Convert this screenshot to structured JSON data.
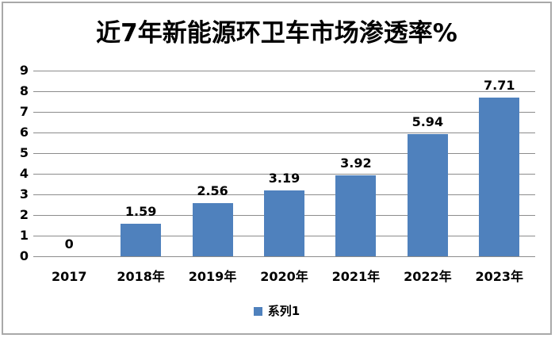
{
  "window": {
    "background": "#ffffff",
    "border_color": "#a9a9a9"
  },
  "chart_data": {
    "type": "bar",
    "title": "近7年新能源环卫车市场渗透率%",
    "categories": [
      "2017",
      "2018年",
      "2019年",
      "2020年",
      "2021年",
      "2022年",
      "2023年"
    ],
    "series": [
      {
        "name": "系列1",
        "values": [
          0,
          1.59,
          2.56,
          3.19,
          3.92,
          5.94,
          7.71
        ],
        "value_labels": [
          "0",
          "1.59",
          "2.56",
          "3.19",
          "3.92",
          "5.94",
          "7.71"
        ]
      }
    ],
    "xlabel": "",
    "ylabel": "",
    "ylim": [
      0,
      9
    ],
    "yticks": [
      "0",
      "1",
      "2",
      "3",
      "4",
      "5",
      "6",
      "7",
      "8",
      "9"
    ],
    "grid": "horizontal",
    "legend_position": "bottom",
    "colors": {
      "bar": "#4f81bd",
      "gridline": "#8c8c8c",
      "text": "#000000"
    }
  }
}
